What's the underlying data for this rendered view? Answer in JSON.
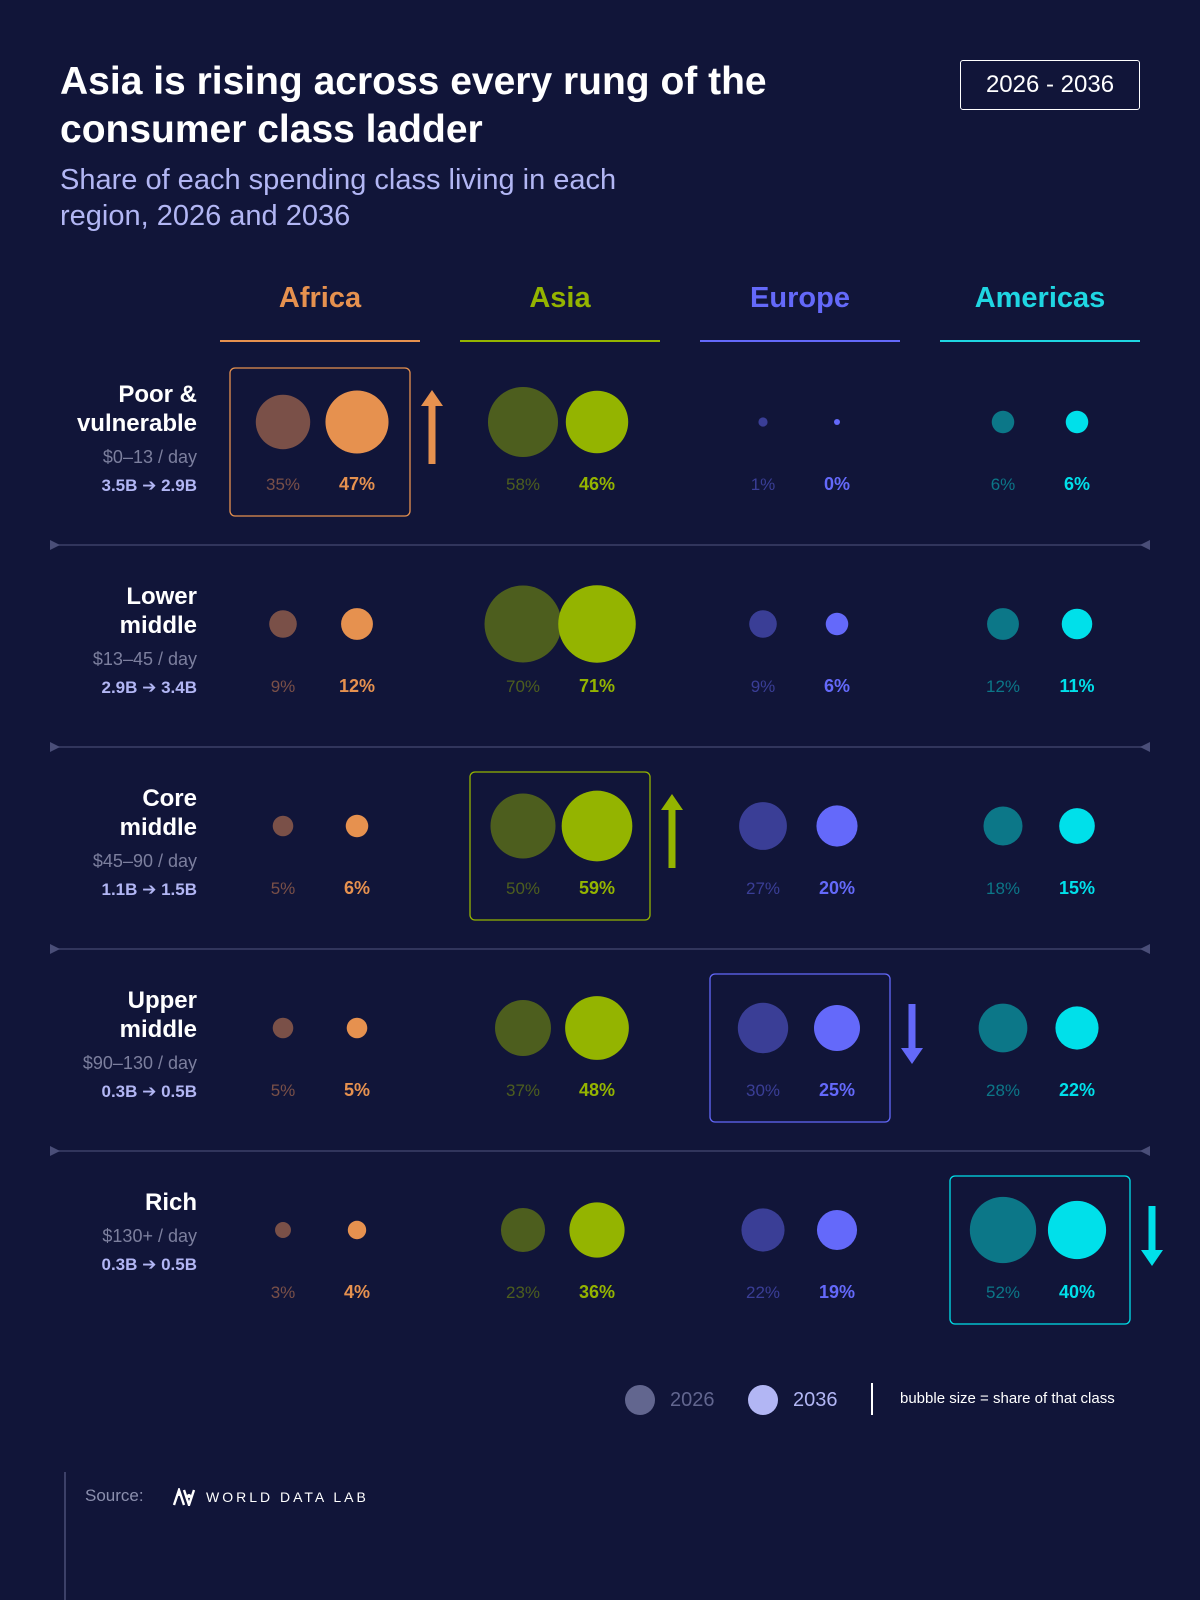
{
  "title": "Asia is rising across every rung of the consumer class ladder",
  "subtitle": "Share of each spending class living in each region, 2026 and 2036",
  "year_badge": "2026 - 2036",
  "colors": {
    "Africa": {
      "c2026": "#7a5048",
      "c2036": "#e6914f",
      "label": "#e6914f"
    },
    "Asia": {
      "c2026": "#4d5e1e",
      "c2036": "#94b400",
      "label": "#94b400"
    },
    "Europe": {
      "c2026": "#3a3e96",
      "c2036": "#6469fa",
      "label": "#6469fa"
    },
    "Americas": {
      "c2026": "#0c7788",
      "c2036": "#00e0ea",
      "label": "#1fd6e2"
    }
  },
  "chart_data": {
    "type": "bubble-grid",
    "years": [
      "2026",
      "2036"
    ],
    "regions": [
      "Africa",
      "Asia",
      "Europe",
      "Americas"
    ],
    "classes": [
      {
        "name_lines": [
          "Poor &",
          "vulnerable"
        ],
        "range": "$0–13 / day",
        "population": "3.5B ➔ 2.9B",
        "values": {
          "Africa": [
            35,
            47
          ],
          "Asia": [
            58,
            46
          ],
          "Europe": [
            1,
            0
          ],
          "Americas": [
            6,
            6
          ]
        },
        "highlight": "Africa",
        "trend": "up"
      },
      {
        "name_lines": [
          "Lower",
          "middle"
        ],
        "range": "$13–45 / day",
        "population": "2.9B ➔ 3.4B",
        "values": {
          "Africa": [
            9,
            12
          ],
          "Asia": [
            70,
            71
          ],
          "Europe": [
            9,
            6
          ],
          "Americas": [
            12,
            11
          ]
        },
        "highlight": null,
        "trend": null
      },
      {
        "name_lines": [
          "Core",
          "middle"
        ],
        "range": "$45–90 / day",
        "population": "1.1B ➔ 1.5B",
        "values": {
          "Africa": [
            5,
            6
          ],
          "Asia": [
            50,
            59
          ],
          "Europe": [
            27,
            20
          ],
          "Americas": [
            18,
            15
          ]
        },
        "highlight": "Asia",
        "trend": "up"
      },
      {
        "name_lines": [
          "Upper",
          "middle"
        ],
        "range": "$90–130 / day",
        "population": "0.3B ➔ 0.5B",
        "values": {
          "Africa": [
            5,
            5
          ],
          "Asia": [
            37,
            48
          ],
          "Europe": [
            30,
            25
          ],
          "Americas": [
            28,
            22
          ]
        },
        "highlight": "Europe",
        "trend": "down"
      },
      {
        "name_lines": [
          "Rich"
        ],
        "range": "$130+ / day",
        "population": "0.3B ➔ 0.5B",
        "values": {
          "Africa": [
            3,
            4
          ],
          "Asia": [
            23,
            36
          ],
          "Europe": [
            22,
            19
          ],
          "Americas": [
            52,
            40
          ]
        },
        "highlight": "Americas",
        "trend": "down"
      }
    ],
    "value_suffix": "%"
  },
  "legend": {
    "year_2026": "2026",
    "year_2036": "2036",
    "color_2026": "#62668f",
    "color_2036": "#b2b6f4",
    "note": "bubble size = share of that class"
  },
  "source": {
    "label": "Source:",
    "org": "WORLD DATA LAB"
  }
}
